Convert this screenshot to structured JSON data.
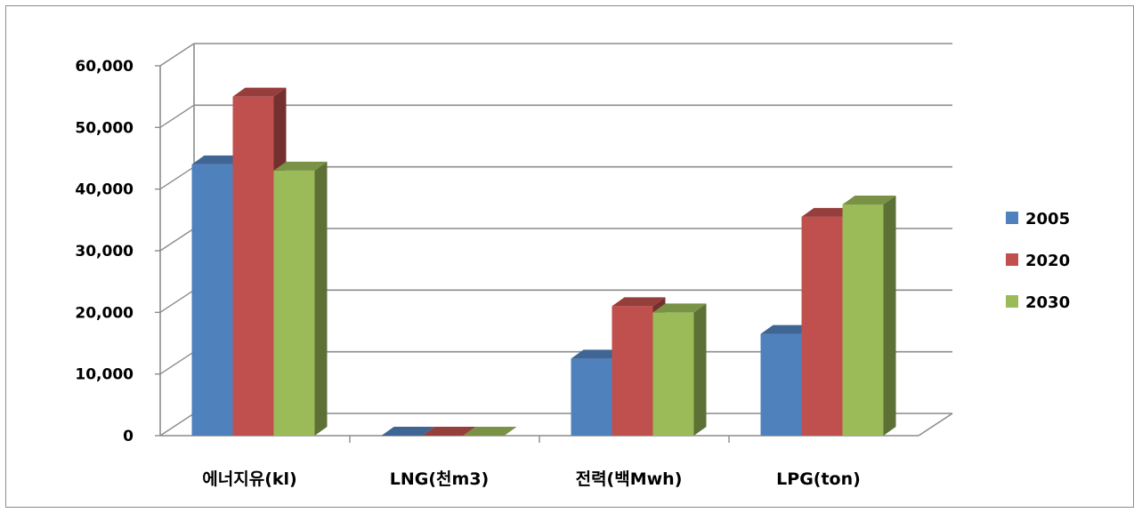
{
  "chart_data": {
    "type": "bar",
    "categories": [
      "에너지유(kl)",
      "LNG(천m3)",
      "전력(백Mwh)",
      "LPG(ton)"
    ],
    "series": [
      {
        "name": "2005",
        "values": [
          44000,
          0,
          12500,
          16500
        ],
        "color": "#4F81BD"
      },
      {
        "name": "2020",
        "values": [
          55000,
          0,
          21000,
          35500
        ],
        "color": "#C0504D"
      },
      {
        "name": "2030",
        "values": [
          43000,
          0,
          20000,
          37500
        ],
        "color": "#9BBB59"
      }
    ],
    "ylim": [
      0,
      60000
    ],
    "yticks": [
      "0",
      "10,000",
      "20,000",
      "30,000",
      "40,000",
      "50,000",
      "60,000"
    ],
    "grid": true,
    "legend": "right",
    "style": "3d-clustered-column"
  }
}
